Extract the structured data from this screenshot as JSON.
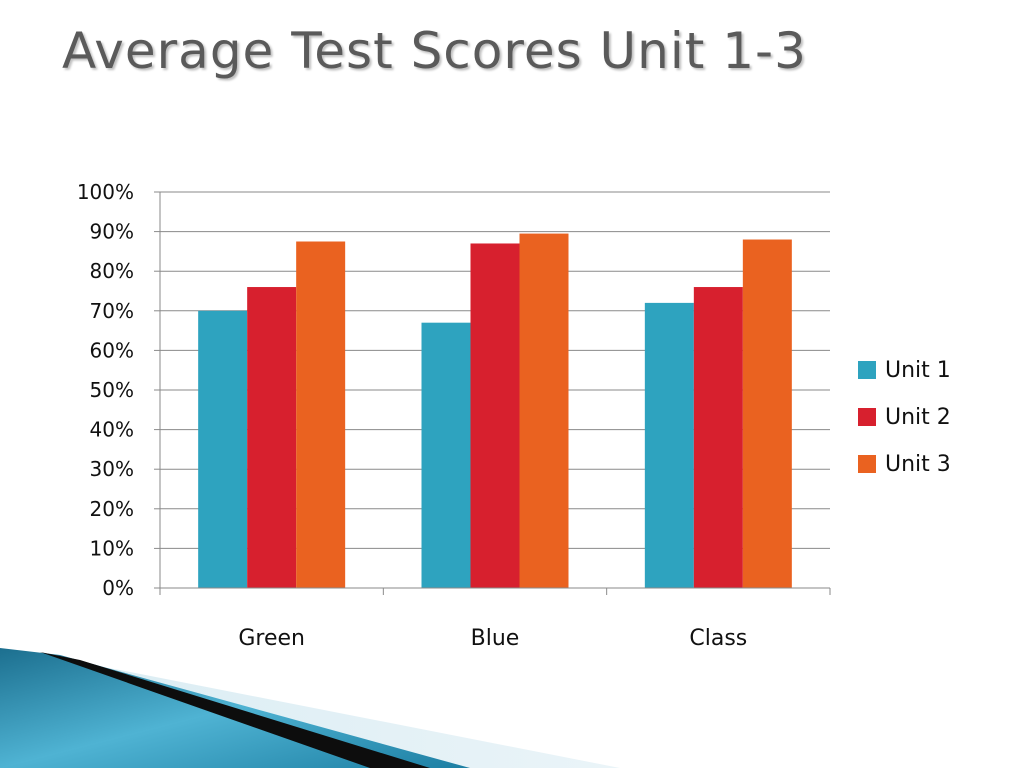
{
  "slide": {
    "title": "Average Test Scores Unit 1-3"
  },
  "chart_data": {
    "type": "bar",
    "title": "",
    "xlabel": "",
    "ylabel": "",
    "categories": [
      "Green",
      "Blue",
      "Class"
    ],
    "series": [
      {
        "name": "Unit 1",
        "color": "#2ea3bf",
        "values": [
          70,
          67,
          72
        ]
      },
      {
        "name": "Unit 2",
        "color": "#d7202e",
        "values": [
          76,
          87,
          76
        ]
      },
      {
        "name": "Unit 3",
        "color": "#ea6220",
        "values": [
          87.5,
          89.5,
          88
        ]
      }
    ],
    "ylim": [
      0,
      100
    ],
    "yticks": [
      "0%",
      "10%",
      "20%",
      "30%",
      "40%",
      "50%",
      "60%",
      "70%",
      "80%",
      "90%",
      "100%"
    ],
    "grid": true,
    "legend_position": "right"
  }
}
